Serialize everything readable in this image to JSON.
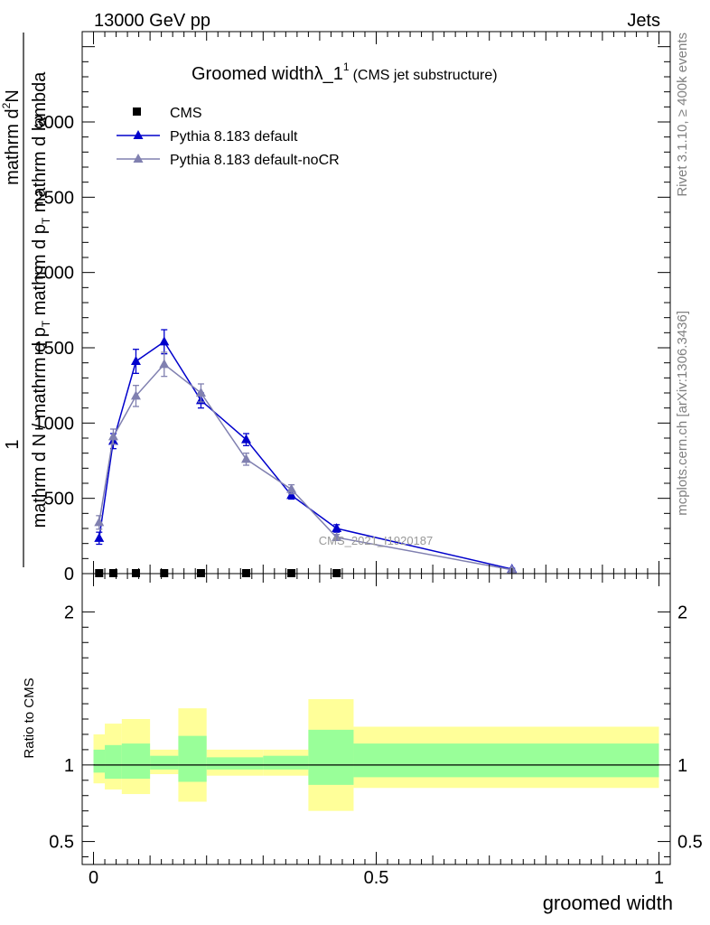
{
  "header": {
    "left": "13000 GeV pp",
    "right": "Jets"
  },
  "side": {
    "rivet": "Rivet 3.1.10, ≥ 400k events",
    "mcplots": "mcplots.cern.ch [arXiv:1306.3436]"
  },
  "chart_data": {
    "type": "line",
    "title_main": "Groomed widthλ_1",
    "title_sup": "1",
    "title_sub": "(CMS jet substructure)",
    "ylabel_one": "1",
    "ylabel_num": "mathrm d",
    "ylabel_num_sup": "2",
    "ylabel_num_tail": "N",
    "ylabel_den": "mathrm d N / mathrm d p",
    "ylabel_den_sub": "T",
    "ylabel_den_tail": " mathrm d p",
    "ylabel_den_sub2": "T",
    "ylabel_den_tail2": " mathrm d lambda",
    "xlabel": "groomed width",
    "ratio_ylabel": "Ratio to CMS",
    "watermark": "CMS_2021_I1920187",
    "xlim": [
      -0.02,
      1.02
    ],
    "ylim": [
      0,
      3600
    ],
    "ratio_ylim": [
      0.35,
      2.25
    ],
    "x_ticks": [
      {
        "v": 0,
        "label": "0"
      },
      {
        "v": 0.5,
        "label": "0.5"
      },
      {
        "v": 1,
        "label": "1"
      }
    ],
    "y_ticks": [
      {
        "v": 0,
        "label": "0"
      },
      {
        "v": 500,
        "label": "500"
      },
      {
        "v": 1000,
        "label": "1000"
      },
      {
        "v": 1500,
        "label": "1500"
      },
      {
        "v": 2000,
        "label": "2000"
      },
      {
        "v": 2500,
        "label": "2500"
      },
      {
        "v": 3000,
        "label": "3000"
      }
    ],
    "ratio_ticks": [
      {
        "v": 0.5,
        "label": "0.5"
      },
      {
        "v": 1,
        "label": "1"
      },
      {
        "v": 2,
        "label": "2"
      }
    ],
    "bins": [
      0,
      0.02,
      0.05,
      0.1,
      0.15,
      0.2,
      0.3,
      0.38,
      0.46,
      1.0
    ],
    "legend": [
      {
        "name": "CMS",
        "color": "#000000",
        "marker": "square"
      },
      {
        "name": "Pythia 8.183 default",
        "color": "#0000cc",
        "marker": "triangle"
      },
      {
        "name": "Pythia 8.183 default-noCR",
        "color": "#8080b0",
        "marker": "triangle"
      }
    ],
    "series": [
      {
        "name": "CMS",
        "x": [
          0.01,
          0.035,
          0.075,
          0.125,
          0.19,
          0.27,
          0.35,
          0.43
        ],
        "y": [
          3,
          3,
          3,
          3,
          3,
          3,
          3,
          3
        ]
      },
      {
        "name": "Pythia 8.183 default",
        "x": [
          0.01,
          0.035,
          0.075,
          0.125,
          0.19,
          0.27,
          0.35,
          0.43,
          0.74
        ],
        "y": [
          235,
          880,
          1410,
          1540,
          1150,
          890,
          520,
          300,
          30
        ],
        "err": [
          40,
          50,
          80,
          80,
          50,
          40,
          25,
          25,
          5
        ]
      },
      {
        "name": "Pythia 8.183 default-noCR",
        "x": [
          0.01,
          0.035,
          0.075,
          0.125,
          0.19,
          0.27,
          0.35,
          0.43,
          0.74
        ],
        "y": [
          340,
          910,
          1180,
          1390,
          1200,
          760,
          560,
          240,
          25
        ],
        "err": [
          45,
          50,
          70,
          80,
          60,
          40,
          30,
          20,
          5
        ]
      }
    ],
    "ratio_bands": {
      "outer": [
        [
          0.88,
          1.2
        ],
        [
          0.84,
          1.27
        ],
        [
          0.81,
          1.3
        ],
        [
          0.94,
          1.1
        ],
        [
          0.76,
          1.37
        ],
        [
          0.93,
          1.1
        ],
        [
          0.93,
          1.1
        ],
        [
          0.7,
          1.43
        ],
        [
          0.85,
          1.25
        ]
      ],
      "inner": [
        [
          0.95,
          1.1
        ],
        [
          0.91,
          1.13
        ],
        [
          0.91,
          1.14
        ],
        [
          0.97,
          1.06
        ],
        [
          0.89,
          1.19
        ],
        [
          0.97,
          1.05
        ],
        [
          0.97,
          1.06
        ],
        [
          0.87,
          1.23
        ],
        [
          0.92,
          1.14
        ]
      ]
    },
    "colors": {
      "band_outer": "#ffff99",
      "band_inner": "#99ff99"
    }
  }
}
